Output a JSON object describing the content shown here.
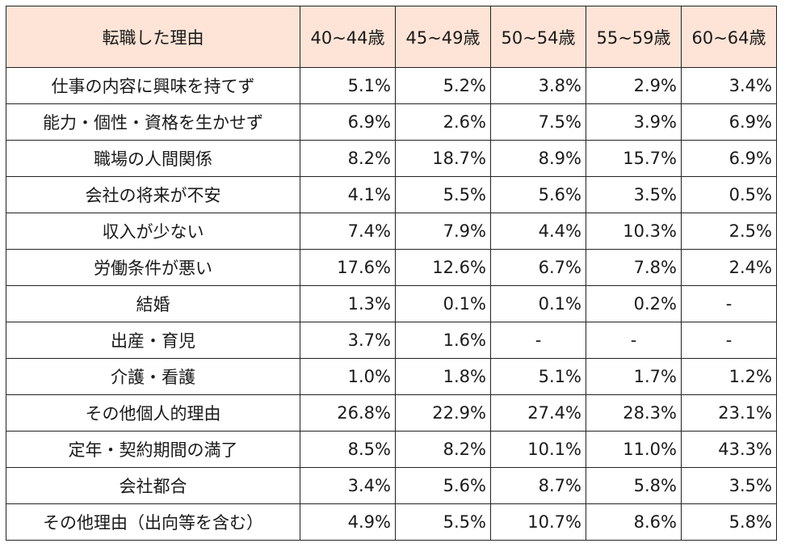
{
  "colors": {
    "header_bg": "#fde4d6",
    "border": "#222222",
    "cell_bg": "#ffffff"
  },
  "chart_data": {
    "type": "table",
    "columns": [
      "転職した理由",
      "40~44歳",
      "45~49歳",
      "50~54歳",
      "55~59歳",
      "60~64歳"
    ],
    "rows": [
      [
        "仕事の内容に興味を持てず",
        "5.1%",
        "5.2%",
        "3.8%",
        "2.9%",
        "3.4%"
      ],
      [
        "能力・個性・資格を生かせず",
        "6.9%",
        "2.6%",
        "7.5%",
        "3.9%",
        "6.9%"
      ],
      [
        "職場の人間関係",
        "8.2%",
        "18.7%",
        "8.9%",
        "15.7%",
        "6.9%"
      ],
      [
        "会社の将来が不安",
        "4.1%",
        "5.5%",
        "5.6%",
        "3.5%",
        "0.5%"
      ],
      [
        "収入が少ない",
        "7.4%",
        "7.9%",
        "4.4%",
        "10.3%",
        "2.5%"
      ],
      [
        "労働条件が悪い",
        "17.6%",
        "12.6%",
        "6.7%",
        "7.8%",
        "2.4%"
      ],
      [
        "結婚",
        "1.3%",
        "0.1%",
        "0.1%",
        "0.2%",
        "-"
      ],
      [
        "出産・育児",
        "3.7%",
        "1.6%",
        "-",
        "-",
        "-"
      ],
      [
        "介護・看護",
        "1.0%",
        "1.8%",
        "5.1%",
        "1.7%",
        "1.2%"
      ],
      [
        "その他個人的理由",
        "26.8%",
        "22.9%",
        "27.4%",
        "28.3%",
        "23.1%"
      ],
      [
        "定年・契約期間の満了",
        "8.5%",
        "8.2%",
        "10.1%",
        "11.0%",
        "43.3%"
      ],
      [
        "会社都合",
        "3.4%",
        "5.6%",
        "8.7%",
        "5.8%",
        "3.5%"
      ],
      [
        "その他理由（出向等を含む）",
        "4.9%",
        "5.5%",
        "10.7%",
        "8.6%",
        "5.8%"
      ]
    ]
  }
}
